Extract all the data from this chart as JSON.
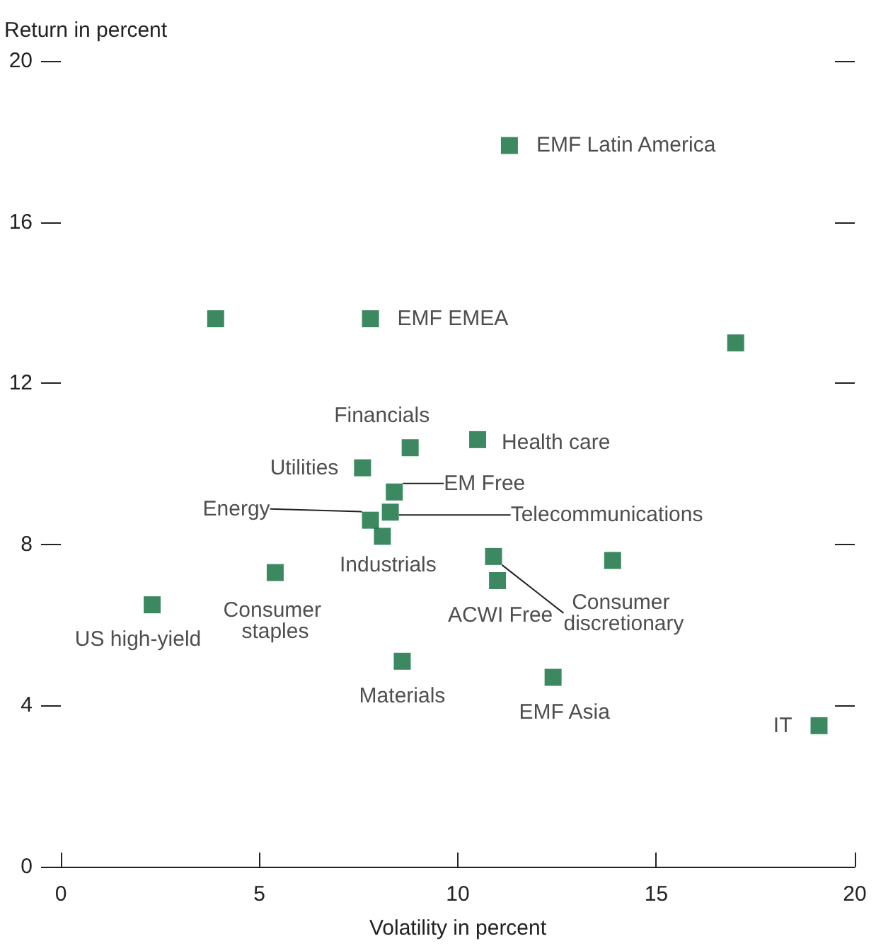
{
  "chart_data": {
    "type": "scatter",
    "xlabel": "Volatility in percent",
    "ylabel": "Return in percent",
    "xlim": [
      0,
      20
    ],
    "xticks": [
      0,
      5,
      10,
      15,
      20
    ],
    "ylim": [
      0,
      20
    ],
    "yticks": [
      0,
      4,
      8,
      12,
      16,
      20
    ],
    "grid": false,
    "legend": false,
    "marker": "square",
    "series": [
      {
        "name": "EMF Latin America",
        "color": "#0b6b3a",
        "x": [
          11.3
        ],
        "values": [
          17.9
        ]
      },
      {
        "color": "#0b6b3a",
        "x": [
          3.9
        ],
        "values": [
          13.6
        ]
      },
      {
        "name": "EMF EMEA",
        "color": "#0b6b3a",
        "x": [
          7.8
        ],
        "values": [
          13.6
        ]
      },
      {
        "color": "#0b6b3a",
        "x": [
          17.0
        ],
        "values": [
          13.0
        ]
      },
      {
        "name": "Health care",
        "color": "#0b6b3a",
        "x": [
          10.5
        ],
        "values": [
          10.6
        ]
      },
      {
        "name": "Financials",
        "color": "#0b6b3a",
        "x": [
          8.8
        ],
        "values": [
          10.4
        ]
      },
      {
        "name": "Utilities",
        "color": "#0b6b3a",
        "x": [
          7.6
        ],
        "values": [
          9.9
        ]
      },
      {
        "name": "EM Free",
        "color": "#0b6b3a",
        "x": [
          8.4
        ],
        "values": [
          9.3
        ]
      },
      {
        "name": "Energy",
        "color": "#0b6b3a",
        "x": [
          7.8
        ],
        "values": [
          8.6
        ]
      },
      {
        "name": "Telecommunications",
        "color": "#0b6b3a",
        "x": [
          8.3
        ],
        "values": [
          8.8
        ]
      },
      {
        "name": "Industrials",
        "color": "#0b6b3a",
        "x": [
          8.1
        ],
        "values": [
          8.2
        ]
      },
      {
        "name": "US high-yield",
        "color": "#0b6b3a",
        "x": [
          2.3
        ],
        "values": [
          6.5
        ]
      },
      {
        "name": "Consumer staples",
        "color": "#0b6b3a",
        "x": [
          5.4
        ],
        "values": [
          7.3
        ]
      },
      {
        "name": "Consumer discretionary",
        "color": "#0b6b3a",
        "x": [
          10.9
        ],
        "values": [
          7.7
        ]
      },
      {
        "name": "ACWI Free",
        "color": "#0b6b3a",
        "x": [
          11.0
        ],
        "values": [
          7.1
        ]
      },
      {
        "color": "#0b6b3a",
        "x": [
          13.9
        ],
        "values": [
          7.6
        ]
      },
      {
        "name": "Materials",
        "color": "#0b6b3a",
        "x": [
          8.6
        ],
        "values": [
          5.1
        ]
      },
      {
        "name": "EMF Asia",
        "color": "#0b6b3a",
        "x": [
          12.4
        ],
        "values": [
          4.7
        ]
      },
      {
        "name": "IT",
        "color": "#0b6b3a",
        "x": [
          19.1
        ],
        "values": [
          3.5
        ]
      }
    ]
  }
}
